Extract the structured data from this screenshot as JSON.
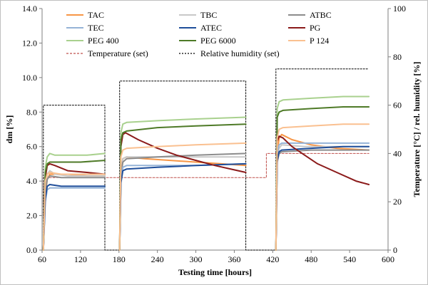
{
  "chart_data": {
    "type": "line",
    "xlabel": "Testing time [hours]",
    "ylabel": "dm [%]",
    "y2label": "Temperature [°C] / rel. humidity [%]",
    "xlim": [
      60,
      600
    ],
    "ylim": [
      0,
      14
    ],
    "y2lim": [
      0,
      100
    ],
    "x_ticks": [
      "60",
      "120",
      "180",
      "240",
      "300",
      "360",
      "420",
      "480",
      "540",
      "600"
    ],
    "y_ticks": [
      "0.0",
      "2.0",
      "4.0",
      "6.0",
      "8.0",
      "10.0",
      "12.0",
      "14.0"
    ],
    "y2_ticks": [
      "0",
      "20",
      "40",
      "60",
      "80",
      "100"
    ],
    "grid": false,
    "legend_position": "top",
    "series": [
      {
        "name": "TAC",
        "color": "#f79646",
        "style": "solid",
        "axis": "left",
        "segments": [
          [
            [
              62,
              0
            ],
            [
              65,
              3.2
            ],
            [
              68,
              4.1
            ],
            [
              72,
              4.4
            ],
            [
              80,
              4.4
            ],
            [
              100,
              4.4
            ],
            [
              130,
              4.3
            ],
            [
              158,
              4.3
            ]
          ],
          [
            [
              181,
              0
            ],
            [
              183,
              4.2
            ],
            [
              186,
              5.3
            ],
            [
              192,
              5.4
            ],
            [
              220,
              5.3
            ],
            [
              260,
              5.2
            ],
            [
              300,
              5.1
            ],
            [
              340,
              5.0
            ],
            [
              378,
              4.9
            ]
          ],
          [
            [
              425,
              0
            ],
            [
              427,
              5.6
            ],
            [
              430,
              6.5
            ],
            [
              434,
              6.7
            ],
            [
              450,
              6.4
            ],
            [
              480,
              6.1
            ],
            [
              520,
              5.9
            ],
            [
              570,
              5.8
            ]
          ]
        ]
      },
      {
        "name": "TBC",
        "color": "#c8c8c8",
        "style": "solid",
        "axis": "left",
        "segments": [
          [
            [
              62,
              0
            ],
            [
              65,
              3.5
            ],
            [
              68,
              4.4
            ],
            [
              72,
              4.6
            ],
            [
              80,
              4.4
            ],
            [
              100,
              4.3
            ],
            [
              130,
              4.3
            ],
            [
              158,
              4.3
            ]
          ],
          [
            [
              181,
              0
            ],
            [
              183,
              4.4
            ],
            [
              186,
              5.3
            ],
            [
              192,
              5.4
            ],
            [
              240,
              5.4
            ],
            [
              300,
              5.4
            ],
            [
              378,
              5.4
            ]
          ],
          [
            [
              425,
              0
            ],
            [
              427,
              5.2
            ],
            [
              430,
              5.9
            ],
            [
              434,
              6.1
            ],
            [
              470,
              6.0
            ],
            [
              520,
              6.0
            ],
            [
              570,
              6.0
            ]
          ]
        ]
      },
      {
        "name": "ATBC",
        "color": "#8c8c8c",
        "style": "solid",
        "axis": "left",
        "segments": [
          [
            [
              62,
              0
            ],
            [
              65,
              3.3
            ],
            [
              68,
              4.1
            ],
            [
              72,
              4.3
            ],
            [
              90,
              4.2
            ],
            [
              120,
              4.2
            ],
            [
              158,
              4.2
            ]
          ],
          [
            [
              181,
              0
            ],
            [
              183,
              4.3
            ],
            [
              186,
              5.1
            ],
            [
              192,
              5.3
            ],
            [
              240,
              5.4
            ],
            [
              300,
              5.5
            ],
            [
              378,
              5.6
            ]
          ],
          [
            [
              425,
              0
            ],
            [
              427,
              5.1
            ],
            [
              430,
              5.6
            ],
            [
              434,
              5.7
            ],
            [
              480,
              5.8
            ],
            [
              530,
              5.8
            ],
            [
              570,
              5.8
            ]
          ]
        ]
      },
      {
        "name": "TEC",
        "color": "#95b3d7",
        "style": "solid",
        "axis": "left",
        "segments": [
          [
            [
              62,
              0
            ],
            [
              65,
              2.8
            ],
            [
              68,
              3.5
            ],
            [
              72,
              3.6
            ],
            [
              90,
              3.6
            ],
            [
              120,
              3.6
            ],
            [
              158,
              3.6
            ]
          ],
          [
            [
              181,
              0
            ],
            [
              183,
              4.0
            ],
            [
              186,
              4.8
            ],
            [
              192,
              4.9
            ],
            [
              240,
              4.9
            ],
            [
              300,
              4.9
            ],
            [
              378,
              5.0
            ]
          ],
          [
            [
              425,
              0
            ],
            [
              427,
              5.6
            ],
            [
              430,
              6.1
            ],
            [
              434,
              6.2
            ],
            [
              480,
              6.2
            ],
            [
              530,
              6.2
            ],
            [
              570,
              6.2
            ]
          ]
        ]
      },
      {
        "name": "ATEC",
        "color": "#1f4e9a",
        "style": "solid",
        "axis": "left",
        "segments": [
          [
            [
              62,
              0
            ],
            [
              65,
              3.0
            ],
            [
              68,
              3.7
            ],
            [
              72,
              3.8
            ],
            [
              90,
              3.7
            ],
            [
              120,
              3.7
            ],
            [
              158,
              3.7
            ]
          ],
          [
            [
              181,
              0
            ],
            [
              183,
              3.9
            ],
            [
              186,
              4.6
            ],
            [
              192,
              4.7
            ],
            [
              240,
              4.8
            ],
            [
              300,
              4.9
            ],
            [
              378,
              5.0
            ]
          ],
          [
            [
              425,
              0
            ],
            [
              427,
              5.2
            ],
            [
              430,
              5.7
            ],
            [
              434,
              5.8
            ],
            [
              480,
              5.9
            ],
            [
              530,
              6.0
            ],
            [
              570,
              6.0
            ]
          ]
        ]
      },
      {
        "name": "PG",
        "color": "#8b1a1a",
        "style": "solid",
        "axis": "left",
        "segments": [
          [
            [
              62,
              0
            ],
            [
              65,
              4.2
            ],
            [
              68,
              4.9
            ],
            [
              72,
              5.0
            ],
            [
              80,
              4.9
            ],
            [
              100,
              4.6
            ],
            [
              130,
              4.5
            ],
            [
              158,
              4.4
            ]
          ],
          [
            [
              181,
              0
            ],
            [
              183,
              6.0
            ],
            [
              186,
              6.7
            ],
            [
              190,
              6.8
            ],
            [
              210,
              6.4
            ],
            [
              240,
              5.9
            ],
            [
              270,
              5.5
            ],
            [
              300,
              5.2
            ],
            [
              330,
              4.9
            ],
            [
              360,
              4.65
            ],
            [
              378,
              4.5
            ]
          ],
          [
            [
              425,
              0
            ],
            [
              427,
              6.3
            ],
            [
              430,
              6.6
            ],
            [
              436,
              6.5
            ],
            [
              450,
              6.0
            ],
            [
              470,
              5.5
            ],
            [
              490,
              5.0
            ],
            [
              520,
              4.5
            ],
            [
              550,
              4.0
            ],
            [
              570,
              3.8
            ]
          ]
        ]
      },
      {
        "name": "PEG 400",
        "color": "#a9d18e",
        "style": "solid",
        "axis": "left",
        "segments": [
          [
            [
              62,
              0
            ],
            [
              65,
              4.8
            ],
            [
              68,
              5.4
            ],
            [
              72,
              5.6
            ],
            [
              80,
              5.5
            ],
            [
              100,
              5.5
            ],
            [
              130,
              5.5
            ],
            [
              158,
              5.6
            ]
          ],
          [
            [
              181,
              0
            ],
            [
              183,
              6.8
            ],
            [
              186,
              7.3
            ],
            [
              192,
              7.4
            ],
            [
              240,
              7.5
            ],
            [
              300,
              7.6
            ],
            [
              378,
              7.7
            ]
          ],
          [
            [
              425,
              0
            ],
            [
              427,
              8.2
            ],
            [
              430,
              8.6
            ],
            [
              436,
              8.7
            ],
            [
              480,
              8.8
            ],
            [
              530,
              8.9
            ],
            [
              570,
              8.9
            ]
          ]
        ]
      },
      {
        "name": "PEG 6000",
        "color": "#4e7a27",
        "style": "solid",
        "axis": "left",
        "segments": [
          [
            [
              62,
              0
            ],
            [
              65,
              4.5
            ],
            [
              68,
              5.0
            ],
            [
              72,
              5.1
            ],
            [
              90,
              5.1
            ],
            [
              120,
              5.1
            ],
            [
              158,
              5.2
            ]
          ],
          [
            [
              181,
              0
            ],
            [
              183,
              6.4
            ],
            [
              186,
              6.8
            ],
            [
              192,
              6.9
            ],
            [
              240,
              7.1
            ],
            [
              300,
              7.2
            ],
            [
              378,
              7.3
            ]
          ],
          [
            [
              425,
              0
            ],
            [
              427,
              7.7
            ],
            [
              430,
              8.0
            ],
            [
              436,
              8.1
            ],
            [
              480,
              8.2
            ],
            [
              530,
              8.3
            ],
            [
              570,
              8.3
            ]
          ]
        ]
      },
      {
        "name": "P 124",
        "color": "#fac090",
        "style": "solid",
        "axis": "left",
        "segments": [
          [
            [
              62,
              0
            ],
            [
              65,
              4.0
            ],
            [
              68,
              4.4
            ],
            [
              72,
              4.5
            ],
            [
              90,
              4.4
            ],
            [
              120,
              4.4
            ],
            [
              158,
              4.4
            ]
          ],
          [
            [
              181,
              0
            ],
            [
              183,
              5.4
            ],
            [
              186,
              5.8
            ],
            [
              192,
              5.9
            ],
            [
              240,
              6.0
            ],
            [
              300,
              6.1
            ],
            [
              378,
              6.2
            ]
          ],
          [
            [
              425,
              0
            ],
            [
              427,
              6.5
            ],
            [
              430,
              7.0
            ],
            [
              436,
              7.1
            ],
            [
              480,
              7.2
            ],
            [
              530,
              7.3
            ],
            [
              570,
              7.3
            ]
          ]
        ]
      },
      {
        "name": "Temperature (set)",
        "color": "#c0504d",
        "style": "dashed",
        "axis": "right",
        "segments": [
          [
            [
              62,
              0
            ],
            [
              62,
              30
            ],
            [
              410,
              30
            ],
            [
              410,
              40
            ],
            [
              570,
              40
            ]
          ]
        ]
      },
      {
        "name": "Relative humidity (set)",
        "color": "#000000",
        "style": "dotted",
        "axis": "right",
        "segments": [
          [
            [
              62,
              0
            ],
            [
              62,
              60
            ],
            [
              158,
              60
            ],
            [
              158,
              0
            ],
            [
              181,
              0
            ],
            [
              181,
              70
            ],
            [
              378,
              70
            ],
            [
              378,
              0
            ],
            [
              425,
              0
            ],
            [
              425,
              75
            ],
            [
              570,
              75
            ]
          ]
        ]
      }
    ]
  }
}
